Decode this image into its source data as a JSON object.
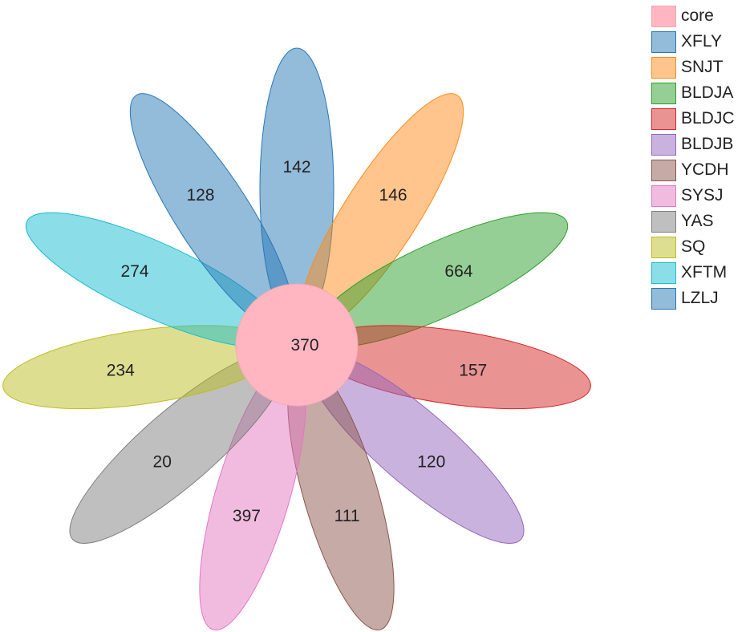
{
  "chart_data": {
    "type": "flower",
    "title": "",
    "core": {
      "name": "core",
      "value": 370,
      "color": "#ffb6c1"
    },
    "petals": [
      {
        "name": "XFLY",
        "value": 142,
        "color": "#2878b5"
      },
      {
        "name": "SNJT",
        "value": 146,
        "color": "#ff8c1a"
      },
      {
        "name": "BLDJA",
        "value": 664,
        "color": "#2ca02c"
      },
      {
        "name": "BLDJC",
        "value": 157,
        "color": "#d62728"
      },
      {
        "name": "BLDJB",
        "value": 120,
        "color": "#9467bd"
      },
      {
        "name": "YCDH",
        "value": 111,
        "color": "#8c564b"
      },
      {
        "name": "SYSJ",
        "value": 397,
        "color": "#e377c2"
      },
      {
        "name": "YAS",
        "value": 20,
        "color": "#7f7f7f"
      },
      {
        "name": "SQ",
        "value": 234,
        "color": "#bcbd22"
      },
      {
        "name": "XFTM",
        "value": 274,
        "color": "#17becf"
      },
      {
        "name": "LZLJ",
        "value": 128,
        "color": "#2878b5"
      }
    ],
    "legend": {
      "position": "right",
      "entries": [
        "core",
        "XFLY",
        "SNJT",
        "BLDJA",
        "BLDJC",
        "BLDJB",
        "YCDH",
        "SYSJ",
        "YAS",
        "SQ",
        "XFTM",
        "LZLJ"
      ]
    }
  }
}
